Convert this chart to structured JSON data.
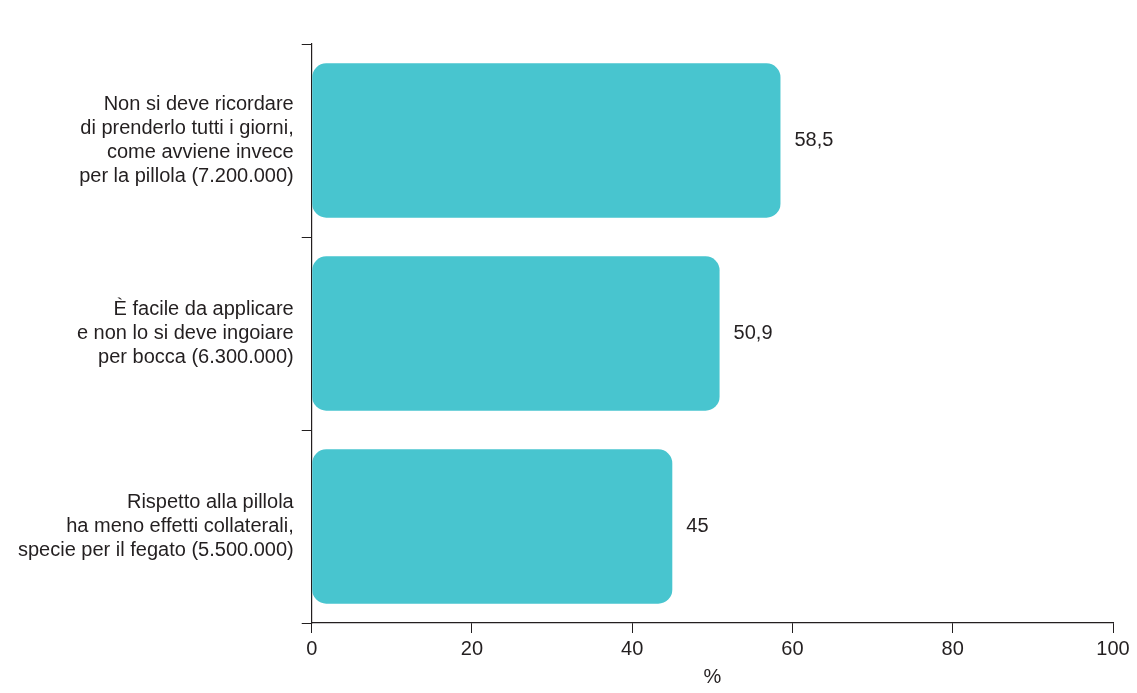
{
  "chart_data": {
    "type": "bar",
    "orientation": "horizontal",
    "xlabel": "%",
    "categories": [
      "Non si deve ricordare\ndi prenderlo tutti i giorni,\ncome avviene invece\nper la pillola (7.200.000)",
      "È facile da applicare\ne non lo si deve ingoiare\nper bocca (6.300.000)",
      "Rispetto alla pillola\nha meno effetti collaterali,\nspecie per il fegato (5.500.000)"
    ],
    "values": [
      58.5,
      50.9,
      45
    ],
    "value_labels": [
      "58,5",
      "50,9",
      "45"
    ],
    "color": "#48c5cf",
    "xlim": [
      0,
      100
    ],
    "xticks": [
      0,
      20,
      40,
      60,
      80,
      100
    ],
    "grid": false,
    "legend": false
  }
}
